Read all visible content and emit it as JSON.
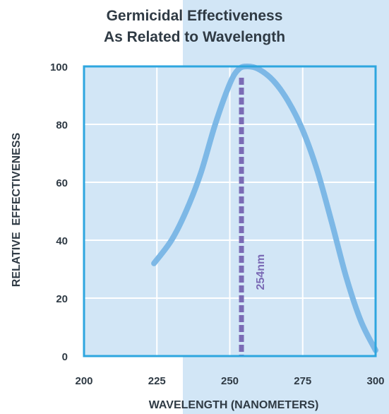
{
  "chart_data": {
    "type": "line",
    "title_lines": [
      "Germicidal Effectiveness",
      "As Related to Wavelength"
    ],
    "xlabel": "WAVELENGTH (NANOMETERS)",
    "ylabel": "RELATIVE  EFFECTIVENESS",
    "xlim": [
      200,
      300
    ],
    "ylim": [
      0,
      100
    ],
    "x_ticks": [
      "200",
      "225",
      "250",
      "275",
      "300"
    ],
    "y_ticks": [
      "0",
      "20",
      "40",
      "60",
      "80",
      "100"
    ],
    "grid": true,
    "series": [
      {
        "x": [
          224,
          230,
          235,
          240,
          245,
          250,
          253,
          256,
          260,
          265,
          270,
          275,
          280,
          285,
          290,
          295,
          300
        ],
        "y": [
          32,
          40,
          50,
          63,
          80,
          94,
          99,
          100,
          99,
          95,
          88,
          78,
          64,
          46,
          27,
          12,
          2
        ]
      }
    ],
    "reference_line": {
      "x": 254,
      "label": "254nm"
    }
  },
  "colors": {
    "curve": "#7db8e6",
    "reference": "#7b6bb5",
    "plot_bg": "#d2e6f6",
    "border": "#2ea6df",
    "text": "#2f3a44",
    "panel_bg": "#d2e6f6"
  }
}
